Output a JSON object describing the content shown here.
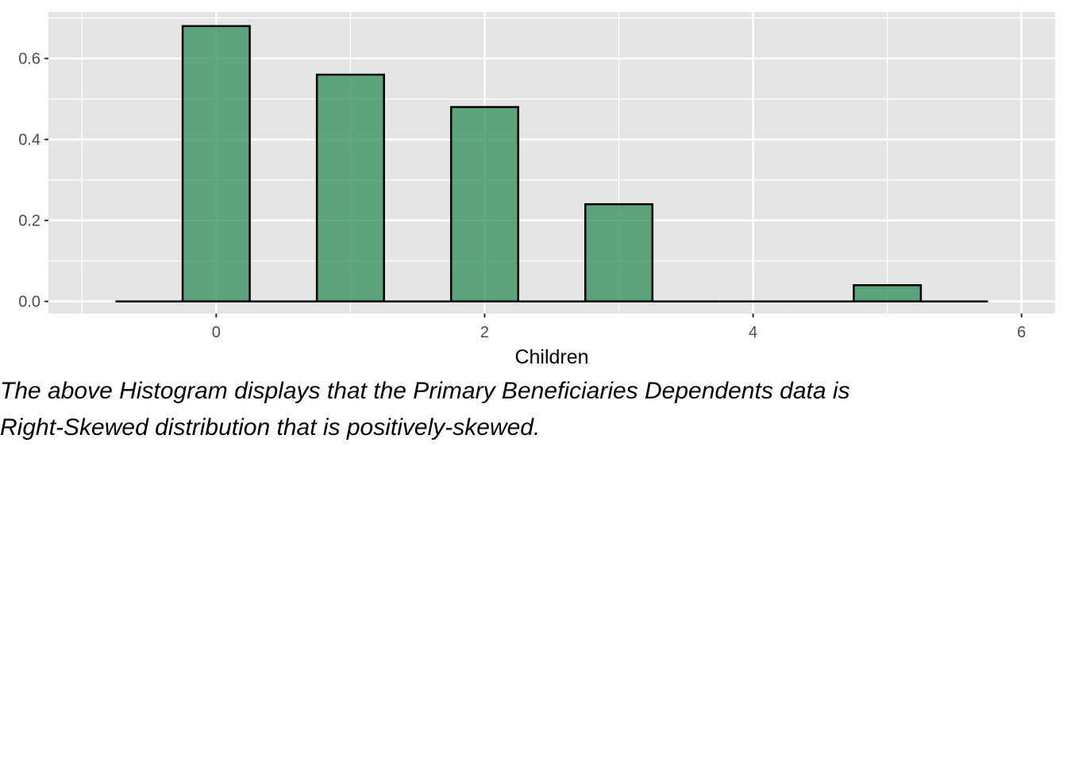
{
  "chart_data": {
    "type": "bar",
    "xlabel": "Children",
    "ylabel": "",
    "x": [
      -0.5,
      0,
      0.5,
      1,
      1.5,
      2,
      2.5,
      3,
      3.5,
      4,
      4.5,
      5,
      5.5
    ],
    "values": [
      0,
      0.68,
      0,
      0.56,
      0,
      0.48,
      0,
      0.24,
      0,
      0,
      0,
      0.04,
      0
    ],
    "bin_width": 0.5,
    "xlim": [
      -1.25,
      6.25
    ],
    "ylim": [
      -0.03,
      0.715
    ],
    "xticks": [
      0,
      2,
      4,
      6
    ],
    "xtick_labels": [
      "0",
      "2",
      "4",
      "6"
    ],
    "yticks": [
      0,
      0.2,
      0.4,
      0.6
    ],
    "ytick_labels": [
      "0.0",
      "0.2",
      "0.4",
      "0.6"
    ],
    "grid": true,
    "colors": {
      "panel": "#e5e5e5",
      "grid": "#ffffff",
      "bar_fill": "#2e8b57",
      "bar_opacity": 0.75,
      "bar_stroke": "#000000"
    }
  },
  "caption": {
    "line1": "The above Histogram displays that the Primary Beneficiaries Dependents data is",
    "line2": "Right-Skewed distribution that is positively-skewed."
  }
}
